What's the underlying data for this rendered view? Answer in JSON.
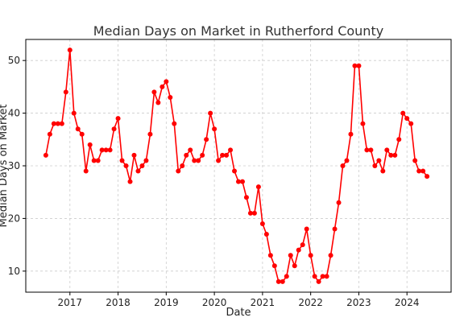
{
  "chart_data": {
    "type": "line",
    "title": "Median Days on Market in Rutherford County",
    "xlabel": "Date",
    "ylabel": "Median Days on Market",
    "color": "#ff0000",
    "grid": true,
    "x_ticks": [
      "2017",
      "2018",
      "2019",
      "2020",
      "2021",
      "2022",
      "2023",
      "2024"
    ],
    "y_ticks": [
      10,
      20,
      30,
      40,
      50
    ],
    "xlim": [
      "2016-02",
      "2024-12"
    ],
    "ylim": [
      6,
      54
    ],
    "series": [
      {
        "x": [
          "2016-07",
          "2016-08",
          "2016-09",
          "2016-10",
          "2016-11",
          "2016-12",
          "2017-01",
          "2017-02",
          "2017-03",
          "2017-04",
          "2017-05",
          "2017-06",
          "2017-07",
          "2017-08",
          "2017-09",
          "2017-10",
          "2017-11",
          "2017-12",
          "2018-01",
          "2018-02",
          "2018-03",
          "2018-04",
          "2018-05",
          "2018-06",
          "2018-07",
          "2018-08",
          "2018-09",
          "2018-10",
          "2018-11",
          "2018-12",
          "2019-01",
          "2019-02",
          "2019-03",
          "2019-04",
          "2019-05",
          "2019-06",
          "2019-07",
          "2019-08",
          "2019-09",
          "2019-10",
          "2019-11",
          "2019-12",
          "2020-01",
          "2020-02",
          "2020-03",
          "2020-04",
          "2020-05",
          "2020-06",
          "2020-07",
          "2020-08",
          "2020-09",
          "2020-10",
          "2020-11",
          "2020-12",
          "2021-01",
          "2021-02",
          "2021-03",
          "2021-04",
          "2021-05",
          "2021-06",
          "2021-07",
          "2021-08",
          "2021-09",
          "2021-10",
          "2021-11",
          "2021-12",
          "2022-01",
          "2022-02",
          "2022-03",
          "2022-04",
          "2022-05",
          "2022-06",
          "2022-07",
          "2022-08",
          "2022-09",
          "2022-10",
          "2022-11",
          "2022-12",
          "2023-01",
          "2023-02",
          "2023-03",
          "2023-04",
          "2023-05",
          "2023-06",
          "2023-07",
          "2023-08",
          "2023-09",
          "2023-10",
          "2023-11",
          "2023-12",
          "2024-01",
          "2024-02",
          "2024-03",
          "2024-04",
          "2024-05",
          "2024-06"
        ],
        "values": [
          32,
          36,
          38,
          38,
          38,
          44,
          52,
          40,
          37,
          36,
          29,
          34,
          31,
          31,
          33,
          33,
          33,
          37,
          39,
          31,
          30,
          27,
          32,
          29,
          30,
          31,
          36,
          44,
          42,
          45,
          46,
          43,
          38,
          29,
          30,
          32,
          33,
          31,
          31,
          32,
          35,
          40,
          37,
          31,
          32,
          32,
          33,
          29,
          27,
          27,
          24,
          21,
          21,
          26,
          19,
          17,
          13,
          11,
          8,
          8,
          9,
          13,
          11,
          14,
          15,
          18,
          13,
          9,
          8,
          9,
          9,
          13,
          18,
          23,
          30,
          31,
          36,
          49,
          49,
          38,
          33,
          33,
          30,
          31,
          29,
          33,
          32,
          32,
          35,
          40,
          39,
          38,
          31,
          29,
          29,
          28
        ]
      }
    ]
  }
}
